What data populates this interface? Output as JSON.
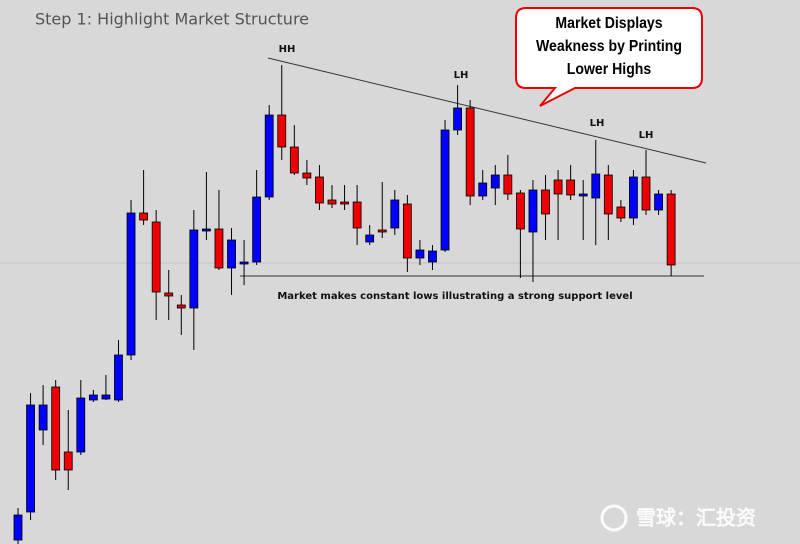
{
  "chart_data": {
    "type": "candlestick",
    "title": "Step 1: Highlight Market Structure",
    "callout": [
      "Market Displays",
      "Weakness by Printing",
      "Lower Highs"
    ],
    "annotations": [
      "HH",
      "LH",
      "LH",
      "LH"
    ],
    "support_note": "Market makes constant lows illustrating a strong support level",
    "watermark": "雪球：汇投资",
    "ylim": [
      0,
      544
    ],
    "up_color": "#0000ff",
    "down_color": "#ee0000",
    "open": [
      4,
      32,
      114,
      157,
      92,
      92,
      144,
      145,
      144,
      189,
      331,
      322,
      251,
      239,
      236,
      313,
      315,
      276,
      280,
      282,
      347,
      429,
      397,
      371,
      367,
      344,
      342,
      342,
      302,
      314,
      316,
      340,
      286,
      282,
      294,
      414,
      436,
      348,
      356,
      369,
      351,
      312,
      354,
      364,
      364,
      348,
      346,
      369,
      337,
      326,
      367,
      334,
      350
    ],
    "high": [
      36,
      151,
      159,
      164,
      134,
      164,
      154,
      169,
      204,
      344,
      374,
      334,
      274,
      249,
      334,
      372,
      354,
      316,
      304,
      374,
      439,
      479,
      419,
      384,
      379,
      359,
      359,
      359,
      319,
      362,
      354,
      349,
      304,
      299,
      424,
      459,
      444,
      374,
      379,
      389,
      354,
      364,
      369,
      374,
      379,
      364,
      404,
      379,
      344,
      374,
      394,
      354,
      354
    ],
    "low": [
      0,
      24,
      99,
      64,
      54,
      89,
      142,
      144,
      142,
      184,
      319,
      224,
      224,
      209,
      194,
      304,
      274,
      249,
      259,
      279,
      344,
      384,
      369,
      359,
      334,
      336,
      334,
      299,
      299,
      306,
      309,
      272,
      279,
      274,
      292,
      409,
      339,
      344,
      339,
      344,
      266,
      262,
      304,
      304,
      344,
      304,
      299,
      304,
      322,
      319,
      329,
      329,
      268
    ],
    "close": [
      29,
      139,
      139,
      74,
      74,
      146,
      149,
      149,
      189,
      331,
      324,
      252,
      248,
      236,
      314,
      315,
      276,
      304,
      282,
      347,
      429,
      397,
      371,
      366,
      341,
      340,
      340,
      316,
      309,
      312,
      344,
      286,
      294,
      293,
      414,
      436,
      348,
      361,
      369,
      350,
      315,
      354,
      330,
      350,
      349,
      350,
      370,
      330,
      326,
      367,
      334,
      350,
      279
    ]
  }
}
